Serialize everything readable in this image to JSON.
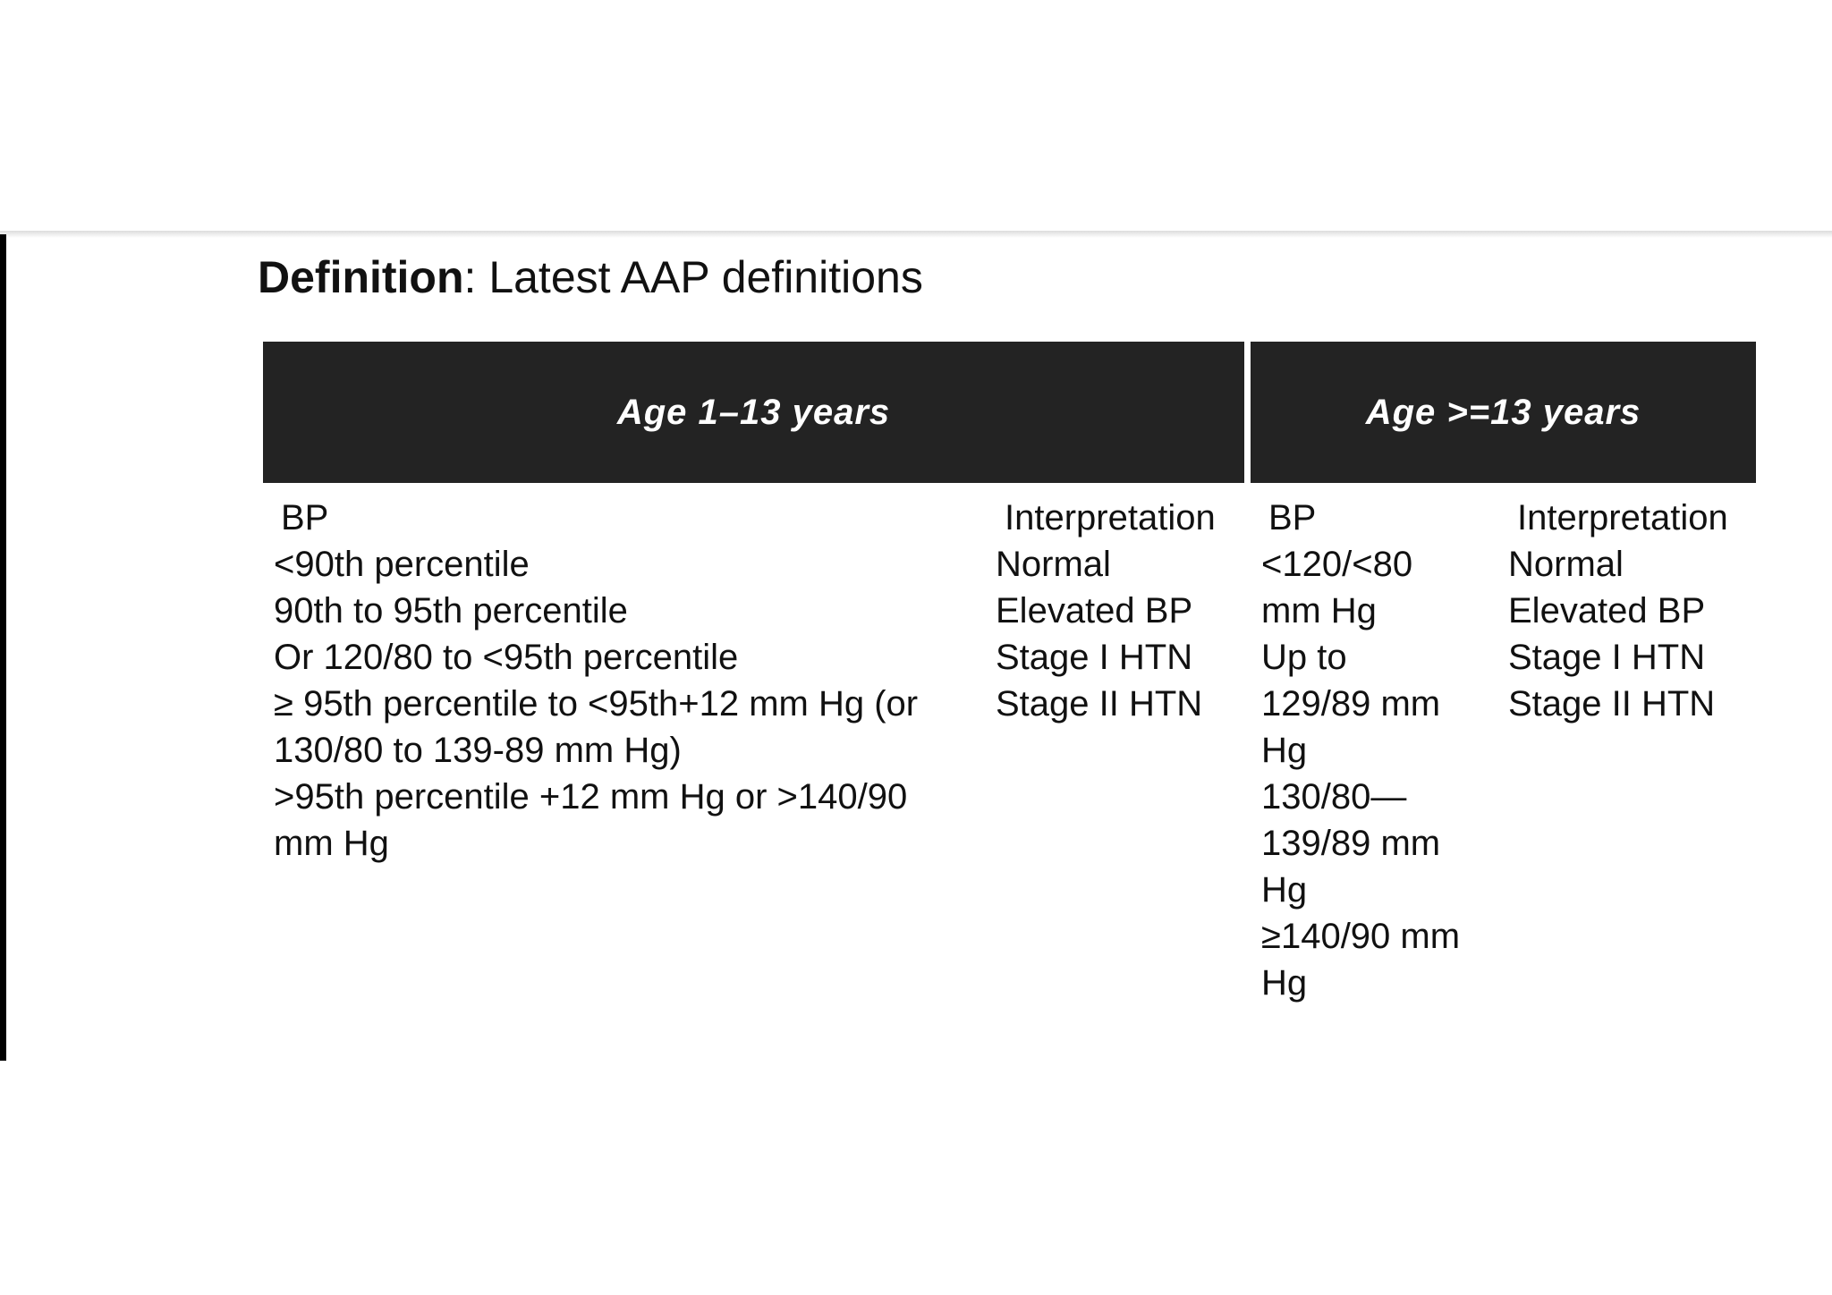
{
  "definition": {
    "label": "Definition",
    "text": ": Latest AAP definitions"
  },
  "table": {
    "groups": [
      {
        "header": "Age 1–13 years",
        "bp_header": "BP",
        "interp_header": "Interpretation",
        "bp_lines": [
          "<90th percentile",
          "90th to 95th percentile",
          "Or 120/80 to <95th percentile",
          "≥ 95th percentile to <95th+12 mm Hg (or",
          "130/80 to 139-89 mm Hg)",
          ">95th percentile +12 mm Hg or >140/90",
          "mm Hg"
        ],
        "interp_lines": [
          "Normal",
          "Elevated BP",
          "Stage I HTN",
          "Stage II HTN"
        ]
      },
      {
        "header": "Age >=13 years",
        "bp_header": "BP",
        "interp_header": "Interpretation",
        "bp_lines": [
          "<120/<80",
          "mm Hg",
          "Up to",
          "129/89 mm",
          "Hg",
          "130/80—",
          "139/89 mm",
          "Hg",
          "≥140/90 mm",
          "Hg"
        ],
        "interp_lines": [
          "Normal",
          "Elevated BP",
          "Stage I HTN",
          "Stage II HTN"
        ]
      }
    ]
  }
}
